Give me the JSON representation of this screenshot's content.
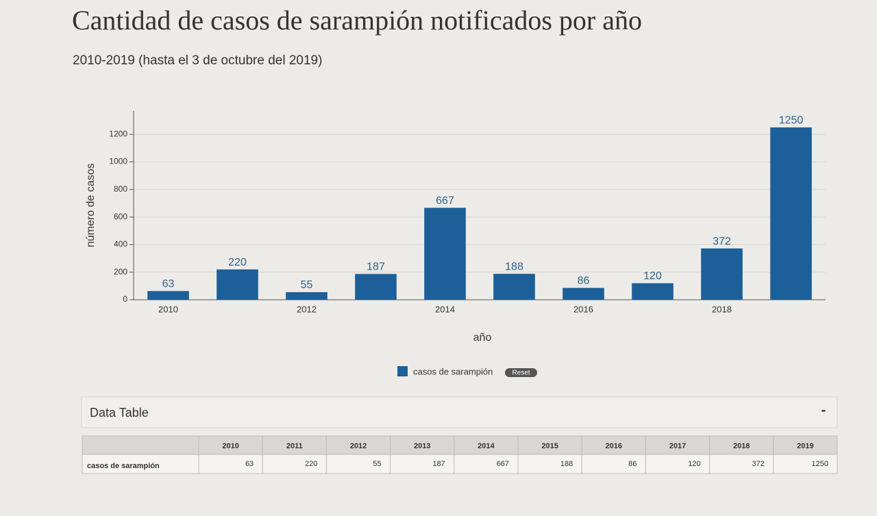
{
  "chart_data": {
    "type": "bar",
    "title": "Cantidad de casos de sarampión notificados por año",
    "subtitle": "2010-2019 (hasta el 3 de octubre del 2019)",
    "x_label": "año",
    "y_label": "número de casos",
    "categories": [
      "2010",
      null,
      "2012",
      null,
      "2014",
      null,
      "2016",
      null,
      "2018",
      null
    ],
    "series": [
      {
        "name": "casos de sarampión",
        "color": "#1d5f98",
        "values": [
          63,
          220,
          55,
          187,
          667,
          188,
          86,
          120,
          372,
          1250
        ]
      }
    ],
    "ylim": [
      0,
      1370
    ],
    "yticks": [
      0,
      200,
      400,
      600,
      800,
      1000,
      1200
    ],
    "grid": true,
    "legend": "bottom",
    "reset_button": "Reset"
  },
  "data_table": {
    "title": "Data Table",
    "toggle": "-",
    "columns": [
      "2010",
      "2011",
      "2012",
      "2013",
      "2014",
      "2015",
      "2016",
      "2017",
      "2018",
      "2019"
    ],
    "rows": [
      {
        "label": "casos de sarampión",
        "cells": [
          63,
          220,
          55,
          187,
          667,
          188,
          86,
          120,
          372,
          1250
        ]
      }
    ]
  }
}
